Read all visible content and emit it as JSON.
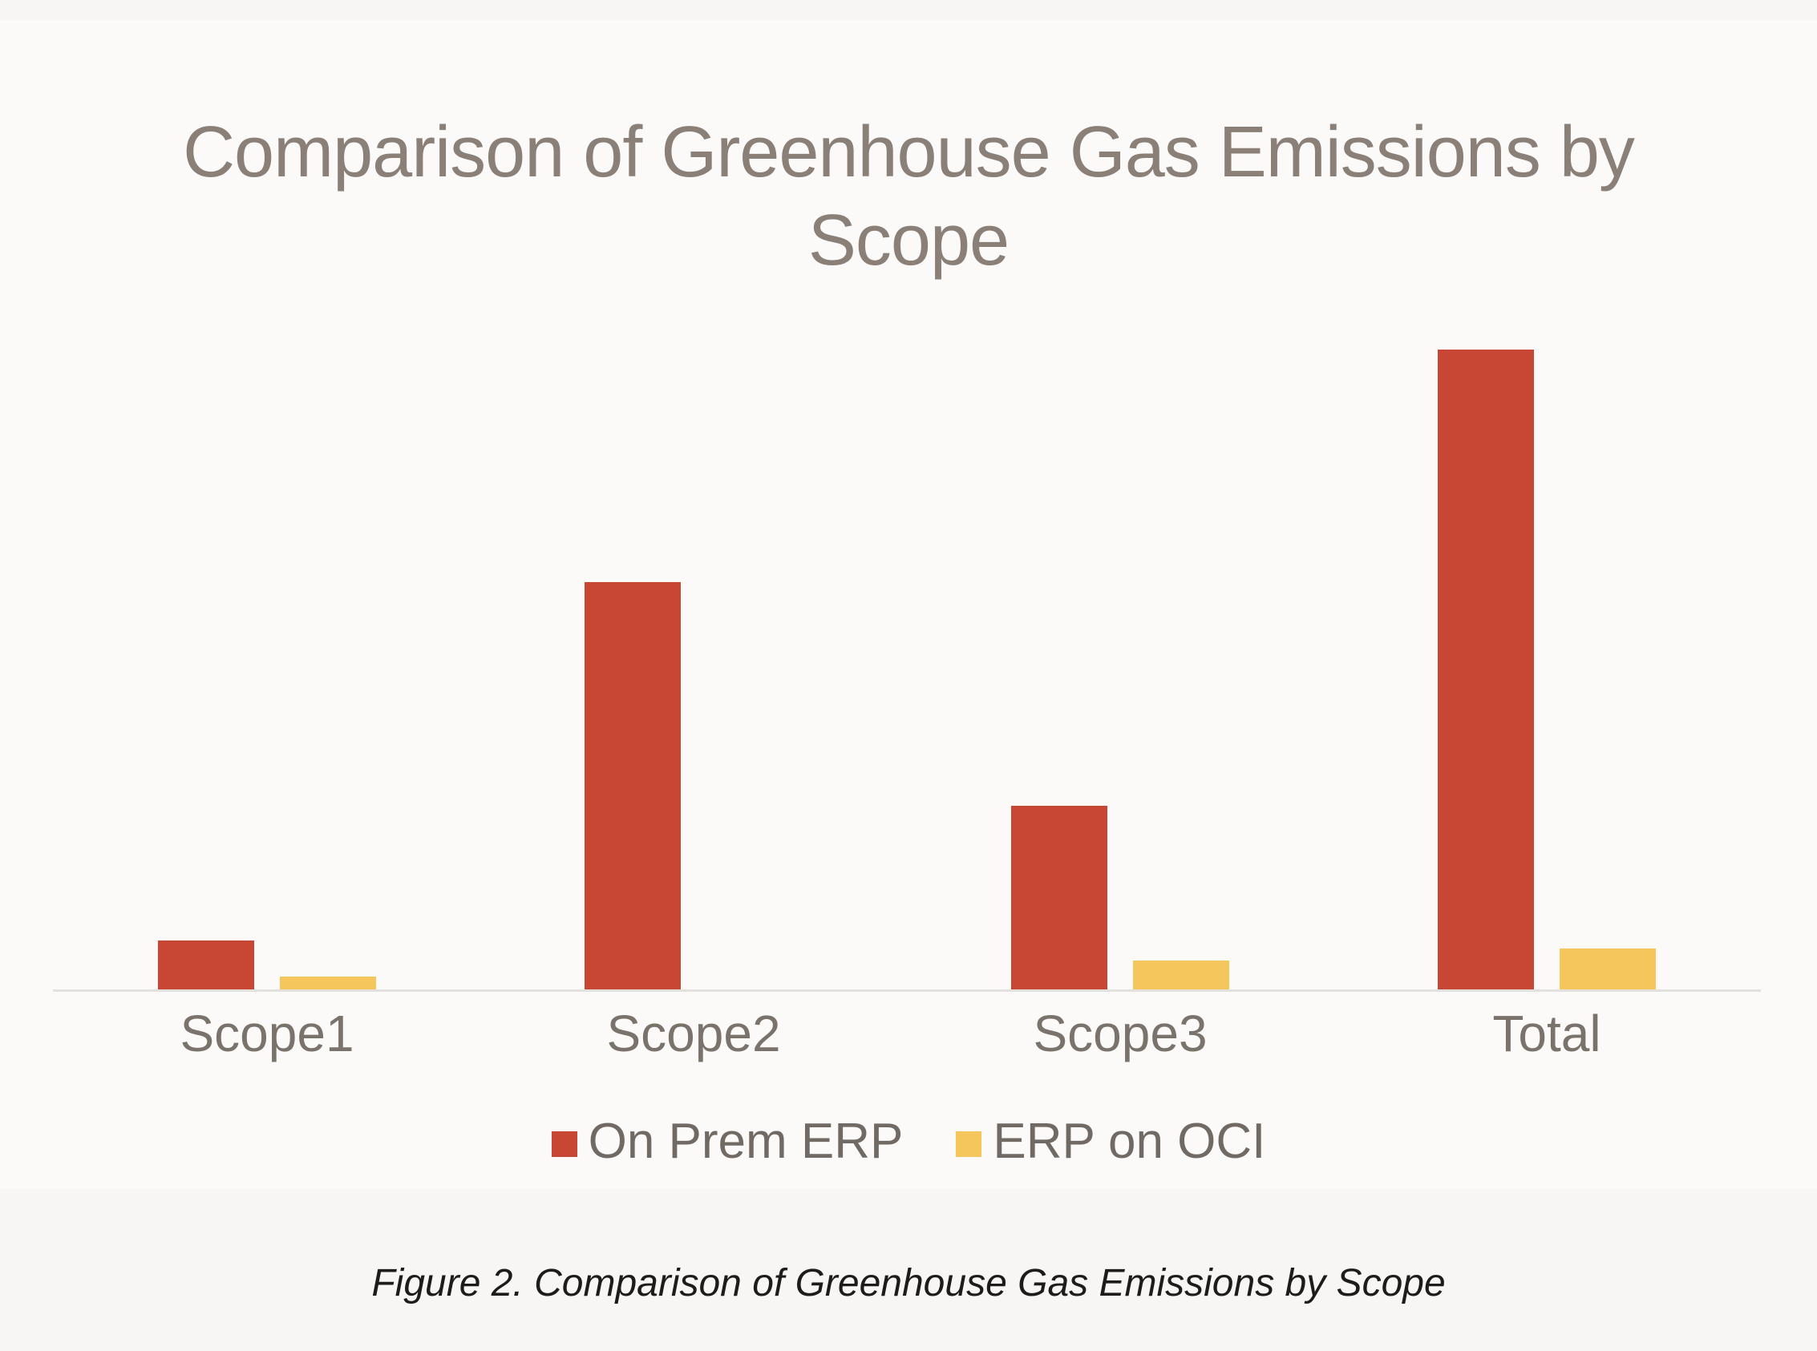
{
  "title_lines": [
    "Comparison of Greenhouse Gas Emissions by",
    "Scope"
  ],
  "caption": "Figure 2. Comparison of Greenhouse Gas Emissions by Scope",
  "colors": {
    "on_prem_erp": "#c74634",
    "erp_on_oci": "#f5c65c",
    "title_text": "#8a8078",
    "axis_label_text": "#7a736c",
    "legend_text": "#716a64",
    "caption_text": "#1d1c1b",
    "axis_line": "#e3e1de",
    "panel_background": "#fcfaf9",
    "page_background": "#f8f6f4"
  },
  "legend": {
    "items": [
      {
        "label": "On Prem ERP",
        "color": "#c74634"
      },
      {
        "label": "ERP on OCI",
        "color": "#f5c65c"
      }
    ]
  },
  "chart_data": {
    "type": "bar",
    "title": "Comparison of Greenhouse Gas Emissions by Scope",
    "categories": [
      "Scope1",
      "Scope2",
      "Scope3",
      "Total"
    ],
    "series": [
      {
        "name": "On Prem ERP",
        "color": "#c74634",
        "values": [
          7.8,
          63.7,
          28.8,
          100
        ]
      },
      {
        "name": "ERP on OCI",
        "color": "#f5c65c",
        "values": [
          2.1,
          0,
          4.6,
          6.5
        ]
      }
    ],
    "xlabel": "",
    "ylabel": "",
    "ylim": [
      0,
      112
    ],
    "y_axis_visible": false,
    "grid": false,
    "legend_position": "bottom",
    "note": "No y-axis tick labels or data labels are shown in the figure; series values are read from relative bar heights, normalized so the 'Total' bar of 'On Prem ERP' equals 100. 'ERP on OCI' at Scope2 is zero/not visible."
  }
}
